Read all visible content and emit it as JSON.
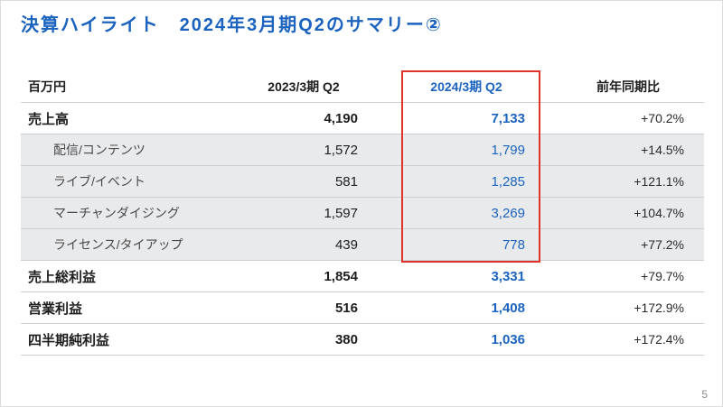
{
  "slide": {
    "title": "決算ハイライト　2024年3月期Q2のサマリー②",
    "page_number": "5"
  },
  "colors": {
    "accent_blue": "#1b63be",
    "highlight_red": "#e0342b",
    "subrow_bg": "#e9eaec"
  },
  "table": {
    "unit_label": "百万円",
    "columns": [
      "2023/3期 Q2",
      "2024/3期 Q2",
      "前年同期比"
    ],
    "rows": [
      {
        "label": "売上高",
        "type": "main",
        "prev": "4,190",
        "curr": "7,133",
        "yoy": "+70.2%"
      },
      {
        "label": "配信/コンテンツ",
        "type": "sub",
        "prev": "1,572",
        "curr": "1,799",
        "yoy": "+14.5%"
      },
      {
        "label": "ライブ/イベント",
        "type": "sub",
        "prev": "581",
        "curr": "1,285",
        "yoy": "+121.1%"
      },
      {
        "label": "マーチャンダイジング",
        "type": "sub",
        "prev": "1,597",
        "curr": "3,269",
        "yoy": "+104.7%"
      },
      {
        "label": "ライセンス/タイアップ",
        "type": "sub",
        "prev": "439",
        "curr": "778",
        "yoy": "+77.2%"
      },
      {
        "label": "売上総利益",
        "type": "main",
        "prev": "1,854",
        "curr": "3,331",
        "yoy": "+79.7%"
      },
      {
        "label": "営業利益",
        "type": "main",
        "prev": "516",
        "curr": "1,408",
        "yoy": "+172.9%"
      },
      {
        "label": "四半期純利益",
        "type": "main",
        "prev": "380",
        "curr": "1,036",
        "yoy": "+172.4%"
      }
    ]
  }
}
